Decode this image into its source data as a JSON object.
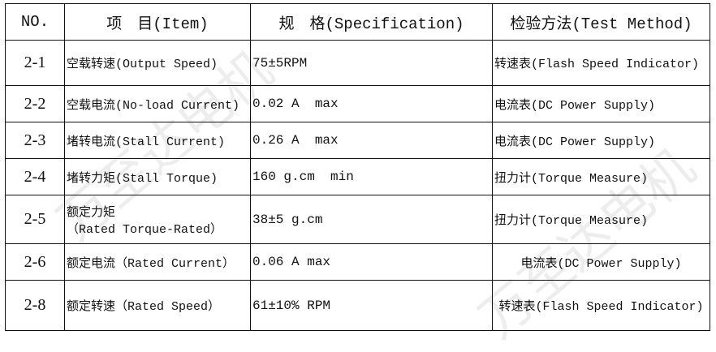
{
  "watermark": "万至达电机",
  "headers": [
    "NO.",
    "项　目(Item)",
    "规　格(Specification)",
    "检验方法(Test Method)"
  ],
  "rows": [
    {
      "no": "2-1",
      "item": "空载转速(Output Speed)",
      "spec": "75±5RPM",
      "method": "转速表(Flash Speed Indicator)"
    },
    {
      "no": "2-2",
      "item": "空载电流(No-load Current)",
      "spec": "0.02 A  max",
      "method": "电流表(DC Power Supply)"
    },
    {
      "no": "2-3",
      "item": "堵转电流(Stall Current)",
      "spec": "0.26 A  max",
      "method": "电流表(DC Power Supply)"
    },
    {
      "no": "2-4",
      "item": "堵转力矩(Stall Torque)",
      "spec": "160 g.cm  min",
      "method": "扭力计(Torque Measure)"
    },
    {
      "no": "2-5",
      "item": "额定力矩",
      "item2": "（Rated Torque-Rated）",
      "spec": "38±5 g.cm",
      "method": "扭力计(Torque Measure)"
    },
    {
      "no": "2-6",
      "item": "额定电流（Rated Current）",
      "spec": "0.06 A max",
      "method": "电流表(DC Power Supply)"
    },
    {
      "no": "2-8",
      "item": "额定转速（Rated Speed）",
      "spec": "61±10% RPM",
      "method": "转速表(Flash Speed Indicator)"
    }
  ]
}
